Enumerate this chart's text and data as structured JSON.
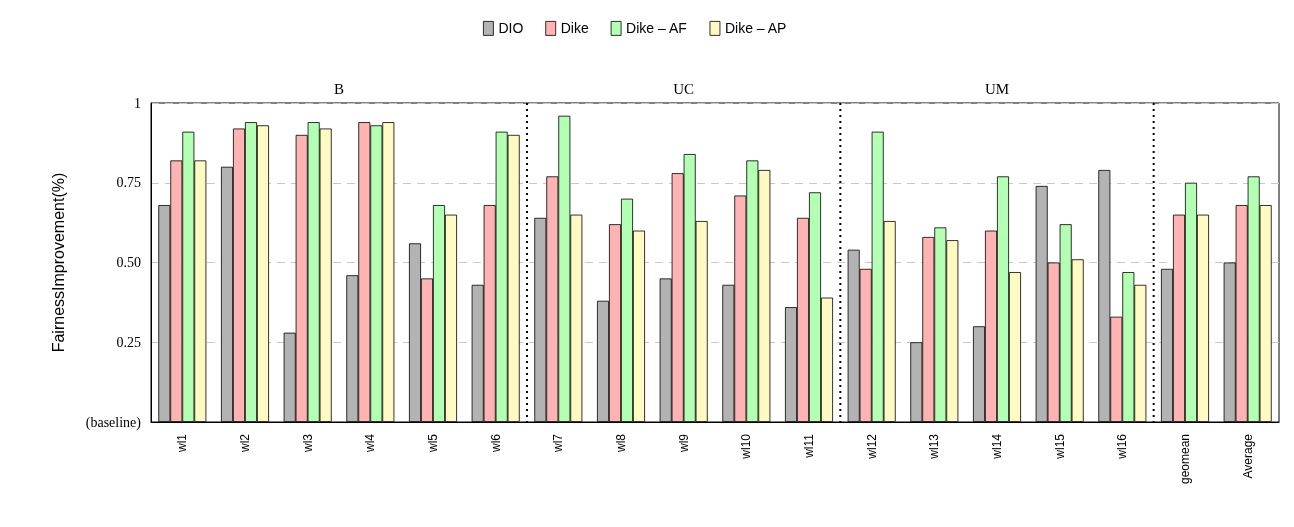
{
  "chart_data": {
    "type": "bar",
    "ylabel": "FairnessImprovement(%)",
    "categories": [
      "wl1",
      "wl2",
      "wl3",
      "wl4",
      "wl5",
      "wl6",
      "wl7",
      "wl8",
      "wl9",
      "wl10",
      "wl11",
      "wl12",
      "wl13",
      "wl14",
      "wl15",
      "wl16",
      "geomean",
      "Average"
    ],
    "series": [
      {
        "name": "DIO",
        "color": "#b3b3b3",
        "values": [
          0.68,
          0.8,
          0.28,
          0.46,
          0.56,
          0.43,
          0.64,
          0.38,
          0.45,
          0.43,
          0.36,
          0.54,
          0.25,
          0.3,
          0.74,
          0.79,
          0.48,
          0.5
        ]
      },
      {
        "name": "Dike",
        "color": "#ffb3b3",
        "values": [
          0.82,
          0.92,
          0.9,
          0.94,
          0.45,
          0.68,
          0.77,
          0.62,
          0.78,
          0.71,
          0.64,
          0.48,
          0.58,
          0.6,
          0.5,
          0.33,
          0.65,
          0.68
        ]
      },
      {
        "name": "Dike – AF",
        "color": "#b3ffb3",
        "values": [
          0.91,
          0.94,
          0.94,
          0.93,
          0.68,
          0.91,
          0.96,
          0.7,
          0.84,
          0.82,
          0.72,
          0.91,
          0.61,
          0.77,
          0.62,
          0.47,
          0.75,
          0.77
        ]
      },
      {
        "name": "Dike – AP",
        "color": "#fff9c4",
        "values": [
          0.82,
          0.93,
          0.92,
          0.94,
          0.65,
          0.9,
          0.65,
          0.6,
          0.63,
          0.79,
          0.39,
          0.63,
          0.57,
          0.47,
          0.51,
          0.43,
          0.65,
          0.68
        ]
      }
    ],
    "ylim": [
      0,
      1
    ],
    "yticks": [
      {
        "value": 0,
        "label": "(baseline)"
      },
      0.25,
      {
        "value": 0.5,
        "label": "0.50"
      },
      0.75,
      1
    ],
    "annotations": [
      "B",
      "UC",
      "UM"
    ],
    "grid": "y",
    "legend": "top"
  }
}
